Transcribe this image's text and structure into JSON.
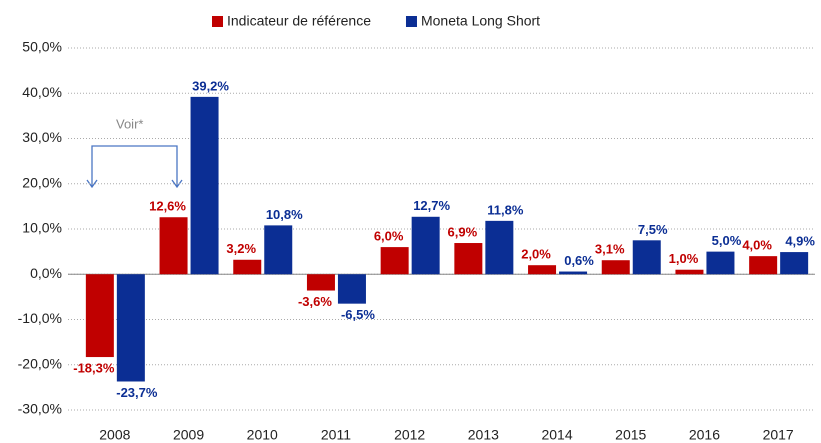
{
  "chart_data": {
    "type": "bar",
    "categories": [
      "2008",
      "2009",
      "2010",
      "2011",
      "2012",
      "2013",
      "2014",
      "2015",
      "2016",
      "2017"
    ],
    "series": [
      {
        "name": "Indicateur de référence",
        "color": "#c00000",
        "values": [
          -18.3,
          12.6,
          3.2,
          -3.6,
          6.0,
          6.9,
          2.0,
          3.1,
          1.0,
          4.0
        ],
        "value_labels": [
          "-18,3%",
          "12,6%",
          "3,2%",
          "-3,6%",
          "6,0%",
          "6,9%",
          "2,0%",
          "3,1%",
          "1,0%",
          "4,0%"
        ]
      },
      {
        "name": "Moneta Long Short",
        "color": "#0b2e94",
        "values": [
          -23.7,
          39.2,
          10.8,
          -6.5,
          12.7,
          11.8,
          0.6,
          7.5,
          5.0,
          4.9
        ],
        "value_labels": [
          "-23,7%",
          "39,2%",
          "10,8%",
          "-6,5%",
          "12,7%",
          "11,8%",
          "0,6%",
          "7,5%",
          "5,0%",
          "4,9%"
        ]
      }
    ],
    "ylim": [
      -30,
      50
    ],
    "yticks": [
      {
        "value": -30,
        "label": "-30,0%"
      },
      {
        "value": -20,
        "label": "-20,0%"
      },
      {
        "value": -10,
        "label": "-10,0%"
      },
      {
        "value": 0,
        "label": "0,0%"
      },
      {
        "value": 10,
        "label": "10,0%"
      },
      {
        "value": 20,
        "label": "20,0%"
      },
      {
        "value": 30,
        "label": "30,0%"
      },
      {
        "value": 40,
        "label": "40,0%"
      },
      {
        "value": 50,
        "label": "50,0%"
      }
    ],
    "grid": true,
    "legend": "top",
    "annotation": "Voir*"
  }
}
